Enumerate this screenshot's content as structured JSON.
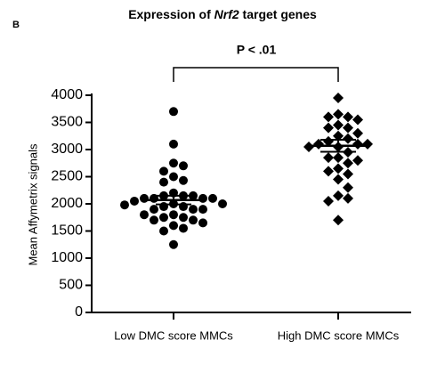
{
  "chart_data": {
    "type": "dot",
    "panel_label": "B",
    "title": [
      "Expression of ",
      "Nrf2",
      " target genes"
    ],
    "annotation": "P < .01",
    "y_label": "Mean Affymetrix signals",
    "categories": [
      "Low DMC score MMCs",
      "High DMC score MMCs"
    ],
    "ylim": [
      0,
      4000
    ],
    "yticks": [
      0,
      500,
      1000,
      1500,
      2000,
      2500,
      3000,
      3500,
      4000
    ],
    "color": "#000000",
    "groups": [
      {
        "marker": "circle",
        "mean": 2070,
        "error": 80,
        "values": [
          3700,
          3100,
          2750,
          2700,
          2600,
          2500,
          2430,
          2400,
          2200,
          2150,
          2150,
          2150,
          2100,
          2100,
          2100,
          2100,
          2050,
          2000,
          2000,
          1980,
          1950,
          1950,
          1900,
          1900,
          1900,
          1800,
          1800,
          1750,
          1750,
          1700,
          1700,
          1650,
          1600,
          1550,
          1500,
          1250
        ]
      },
      {
        "marker": "diamond",
        "mean": 3070,
        "error": 110,
        "values": [
          3950,
          3650,
          3600,
          3600,
          3550,
          3450,
          3400,
          3400,
          3300,
          3250,
          3200,
          3150,
          3100,
          3100,
          3100,
          3050,
          3050,
          2950,
          2850,
          2850,
          2800,
          2750,
          2650,
          2600,
          2550,
          2450,
          2300,
          2150,
          2100,
          2050,
          1700
        ]
      }
    ]
  }
}
